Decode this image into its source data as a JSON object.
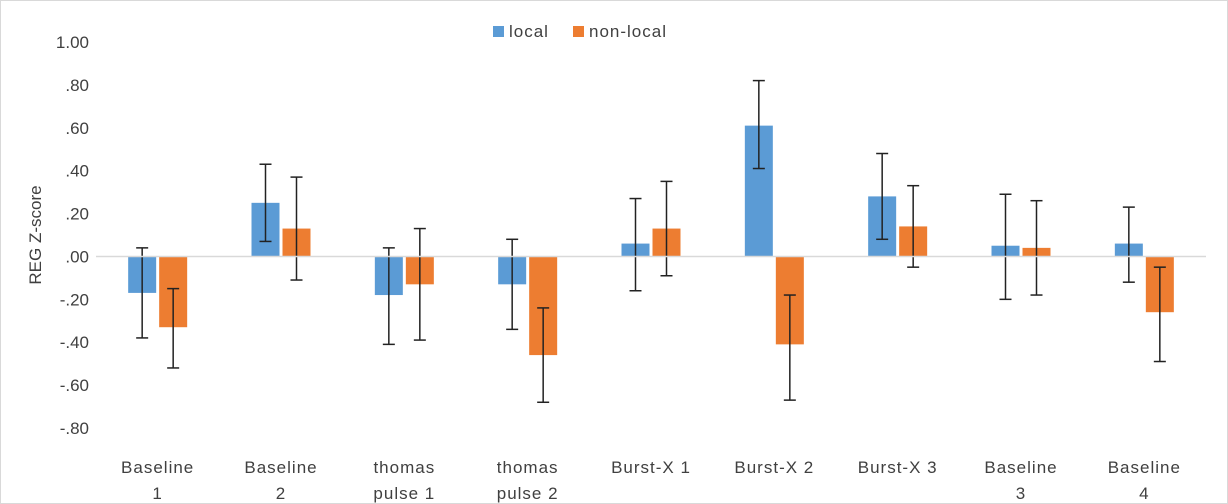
{
  "chart_data": {
    "type": "bar",
    "title": "",
    "xlabel": "",
    "ylabel": "REG Z-score",
    "ylim": [
      -0.8,
      1.0
    ],
    "yticks": [
      "1.00",
      ".80",
      ".60",
      ".40",
      ".20",
      ".00",
      "-.20",
      "-.40",
      "-.60",
      "-.80"
    ],
    "grid": false,
    "legend_position": "top-center",
    "categories": [
      [
        "Baseline",
        "1"
      ],
      [
        "Baseline",
        "2"
      ],
      [
        "thomas",
        "pulse 1"
      ],
      [
        "thomas",
        "pulse 2"
      ],
      [
        "Burst-X 1"
      ],
      [
        "Burst-X 2"
      ],
      [
        "Burst-X 3"
      ],
      [
        "Baseline",
        "3"
      ],
      [
        "Baseline",
        "4"
      ]
    ],
    "series": [
      {
        "name": "local",
        "color": "#5b9bd5",
        "values": [
          -0.17,
          0.25,
          -0.18,
          -0.13,
          0.06,
          0.61,
          0.28,
          0.05,
          0.06
        ],
        "error_low": [
          -0.38,
          0.07,
          -0.41,
          -0.34,
          -0.16,
          0.41,
          0.08,
          -0.2,
          -0.12
        ],
        "error_high": [
          0.04,
          0.43,
          0.04,
          0.08,
          0.27,
          0.82,
          0.48,
          0.29,
          0.23
        ]
      },
      {
        "name": "non-local",
        "color": "#ed7d31",
        "values": [
          -0.33,
          0.13,
          -0.13,
          -0.46,
          0.13,
          -0.41,
          0.14,
          0.04,
          -0.26
        ],
        "error_low": [
          -0.52,
          -0.11,
          -0.39,
          -0.68,
          -0.09,
          -0.67,
          -0.05,
          -0.18,
          -0.49
        ],
        "error_high": [
          -0.15,
          0.37,
          0.13,
          -0.24,
          0.35,
          -0.18,
          0.33,
          0.26,
          -0.05
        ]
      }
    ]
  }
}
